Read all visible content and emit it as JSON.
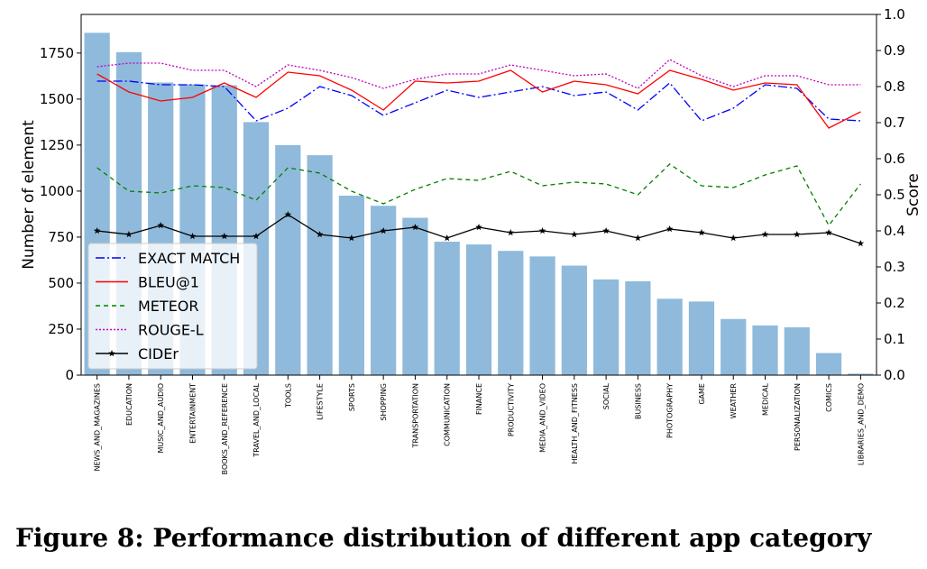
{
  "chart_data": {
    "type": "bar",
    "categories": [
      "NEWS_AND_MAGAZINES",
      "EDUCATION",
      "MUSIC_AND_AUDIO",
      "ENTERTAINMENT",
      "BOOKS_AND_REFERENCE",
      "TRAVEL_AND_LOCAL",
      "TOOLS",
      "LIFESTYLE",
      "SPORTS",
      "SHOPPING",
      "TRANSPORTATION",
      "COMMUNICATION",
      "FINANCE",
      "PRODUCTIVITY",
      "MEDIA_AND_VIDEO",
      "HEALTH_AND_FITNESS",
      "SOCIAL",
      "BUSINESS",
      "PHOTOGRAPHY",
      "GAME",
      "WEATHER",
      "MEDICAL",
      "PERSONALIZATION",
      "COMICS",
      "LIBRARIES_AND_DEMO"
    ],
    "bar_values": [
      1860,
      1755,
      1590,
      1580,
      1575,
      1375,
      1250,
      1195,
      975,
      920,
      855,
      725,
      710,
      675,
      645,
      595,
      520,
      510,
      415,
      400,
      305,
      270,
      260,
      120,
      8
    ],
    "ylabel_left": "Number of element",
    "ylabel_right": "Score",
    "ylim_left": [
      0,
      1960
    ],
    "yticks_left": [
      0,
      250,
      500,
      750,
      1000,
      1250,
      1500,
      1750
    ],
    "ylim_right": [
      0.0,
      1.0
    ],
    "yticks_right": [
      0.0,
      0.1,
      0.2,
      0.3,
      0.4,
      0.5,
      0.6,
      0.7,
      0.8,
      0.9,
      1.0
    ],
    "legend_position": "lower-left",
    "series": [
      {
        "name": "EXACT MATCH",
        "color": "#0000ff",
        "dash": "10 3 2 3",
        "marker": "none",
        "values": [
          0.815,
          0.815,
          0.805,
          0.805,
          0.8,
          0.705,
          0.74,
          0.8,
          0.775,
          0.72,
          0.755,
          0.79,
          0.77,
          0.785,
          0.8,
          0.775,
          0.785,
          0.735,
          0.81,
          0.705,
          0.74,
          0.805,
          0.795,
          0.71,
          0.705
        ]
      },
      {
        "name": "BLEU@1",
        "color": "#ff0000",
        "dash": "",
        "marker": "none",
        "values": [
          0.835,
          0.785,
          0.76,
          0.77,
          0.81,
          0.77,
          0.84,
          0.83,
          0.79,
          0.735,
          0.815,
          0.81,
          0.815,
          0.845,
          0.785,
          0.815,
          0.805,
          0.78,
          0.845,
          0.82,
          0.79,
          0.81,
          0.805,
          0.685,
          0.73
        ]
      },
      {
        "name": "METEOR",
        "color": "#008000",
        "dash": "5 4",
        "marker": "none",
        "values": [
          0.575,
          0.51,
          0.505,
          0.525,
          0.52,
          0.485,
          0.575,
          0.56,
          0.51,
          0.475,
          0.515,
          0.545,
          0.54,
          0.565,
          0.525,
          0.535,
          0.53,
          0.5,
          0.585,
          0.525,
          0.52,
          0.555,
          0.58,
          0.415,
          0.53
        ]
      },
      {
        "name": "ROUGE-L",
        "color": "#bf00bf",
        "dash": "2 2",
        "marker": "none",
        "values": [
          0.855,
          0.865,
          0.865,
          0.845,
          0.845,
          0.8,
          0.86,
          0.845,
          0.825,
          0.795,
          0.82,
          0.835,
          0.835,
          0.86,
          0.845,
          0.83,
          0.835,
          0.795,
          0.875,
          0.83,
          0.8,
          0.83,
          0.83,
          0.805,
          0.805
        ]
      },
      {
        "name": "CIDEr",
        "color": "#000000",
        "dash": "",
        "marker": "star",
        "values": [
          0.4,
          0.39,
          0.415,
          0.385,
          0.385,
          0.385,
          0.445,
          0.39,
          0.38,
          0.4,
          0.41,
          0.38,
          0.41,
          0.395,
          0.4,
          0.39,
          0.4,
          0.38,
          0.405,
          0.395,
          0.38,
          0.39,
          0.39,
          0.395,
          0.365
        ]
      }
    ]
  },
  "caption": "Figure 8: Performance distribution of different app category"
}
